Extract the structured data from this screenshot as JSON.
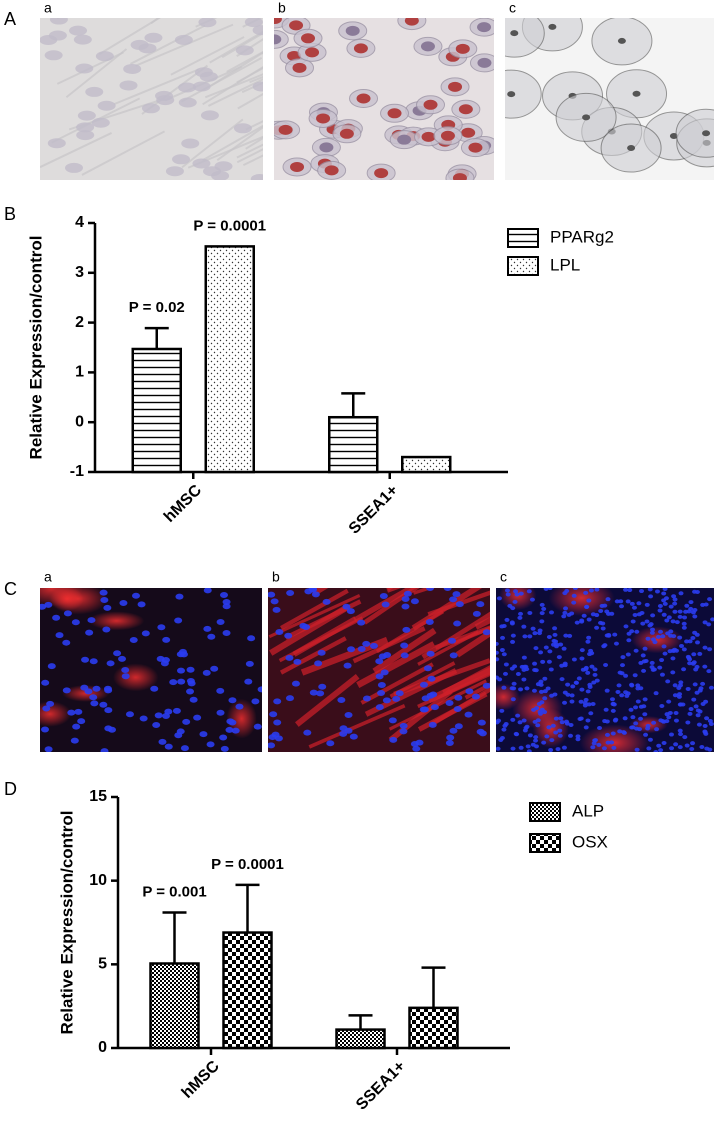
{
  "panel_labels": [
    "A",
    "B",
    "C",
    "D"
  ],
  "image_labels_A": [
    "a",
    "b",
    "c"
  ],
  "image_labels_C": [
    "a",
    "b",
    "c"
  ],
  "chart_data": [
    {
      "type": "bar",
      "y_label": "Relative Expression/control",
      "categories": [
        "hMSC",
        "SSEA1+"
      ],
      "series": [
        {
          "name": "PPARg2",
          "color": "#000000",
          "pattern": "hlines",
          "values": [
            1.47,
            0.1
          ],
          "errors": [
            0.42,
            0.48
          ]
        },
        {
          "name": "LPL",
          "color": "#000000",
          "pattern": "dots",
          "values": [
            3.53,
            -0.7
          ]
        }
      ],
      "ylim": [
        -1,
        4
      ],
      "yticks": [
        -1,
        0,
        1,
        2,
        3,
        4
      ],
      "annotations": [
        {
          "text": "P = 0.02",
          "series": 0,
          "category": 0
        },
        {
          "text": "P = 0.0001",
          "series": 1,
          "category": 0
        }
      ]
    },
    {
      "type": "bar",
      "y_label": "Relative Expression/control",
      "categories": [
        "hMSC",
        "SSEA1+"
      ],
      "series": [
        {
          "name": "ALP",
          "color": "#000000",
          "pattern": "checks-small",
          "values": [
            5.05,
            1.1
          ],
          "errors": [
            3.05,
            0.85
          ]
        },
        {
          "name": "OSX",
          "color": "#000000",
          "pattern": "checks-large",
          "values": [
            6.9,
            2.4
          ],
          "errors": [
            2.85,
            2.4
          ]
        }
      ],
      "ylim": [
        0,
        15
      ],
      "yticks": [
        0,
        5,
        10,
        15
      ],
      "annotations": [
        {
          "text": "P = 0.001",
          "series": 0,
          "category": 0
        },
        {
          "text": "P = 0.0001",
          "series": 1,
          "category": 0
        }
      ]
    }
  ]
}
